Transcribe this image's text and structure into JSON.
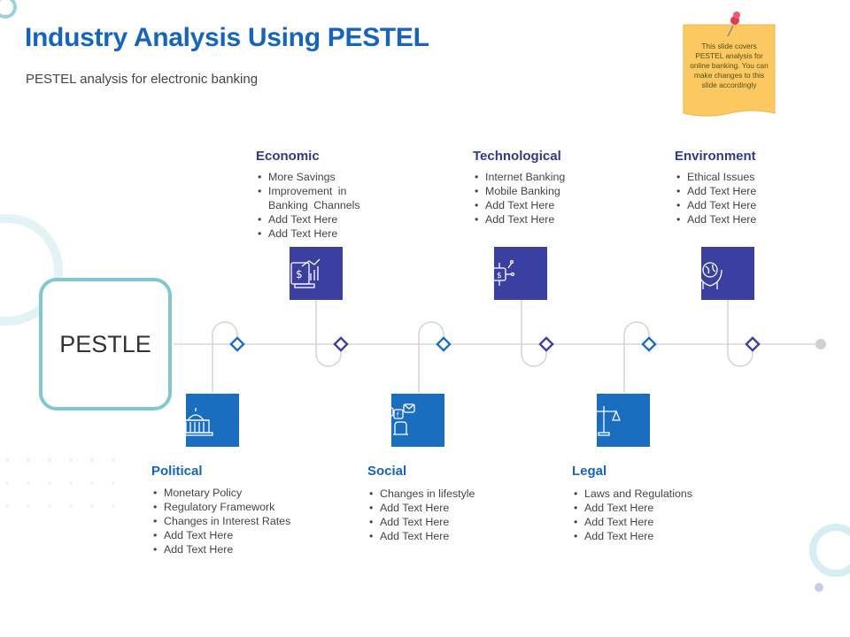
{
  "title": "Industry Analysis Using PESTEL",
  "subtitle": "PESTEL analysis for electronic banking",
  "note": {
    "text": "This slide covers PESTEL analysis for online banking. You can make changes to this slide accordingly"
  },
  "center_label": "PESTLE",
  "colors": {
    "navy": "#3b3fa0",
    "blue": "#1a6ec0",
    "teal": "#7ec8cf",
    "note": "#fbc960"
  },
  "factors": {
    "political": {
      "heading": "Political",
      "icon": "capitol-building-icon",
      "items": [
        "Monetary Policy",
        "Regulatory Framework",
        "Changes in Interest Rates",
        "Add Text Here",
        "Add Text Here"
      ]
    },
    "economic": {
      "heading": "Economic",
      "icon": "finance-chart-icon",
      "items": [
        "More Savings",
        "Improvement in Banking Channels",
        "Add Text Here",
        "Add Text Here"
      ]
    },
    "social": {
      "heading": "Social",
      "icon": "social-media-hand-icon",
      "items": [
        "Changes in lifestyle",
        "Add Text Here",
        "Add Text Here",
        "Add Text Here"
      ]
    },
    "technological": {
      "heading": "Technological",
      "icon": "circuit-chip-icon",
      "items": [
        "Internet Banking",
        "Mobile Banking",
        "Add Text Here",
        "Add Text Here"
      ]
    },
    "legal": {
      "heading": "Legal",
      "icon": "justice-scale-icon",
      "items": [
        "Laws and Regulations",
        "Add Text Here",
        "Add Text Here",
        "Add Text Here"
      ]
    },
    "environment": {
      "heading": "Environment",
      "icon": "earth-in-hands-icon",
      "items": [
        "Ethical Issues",
        "Add Text Here",
        "Add Text Here",
        "Add Text Here"
      ]
    }
  }
}
